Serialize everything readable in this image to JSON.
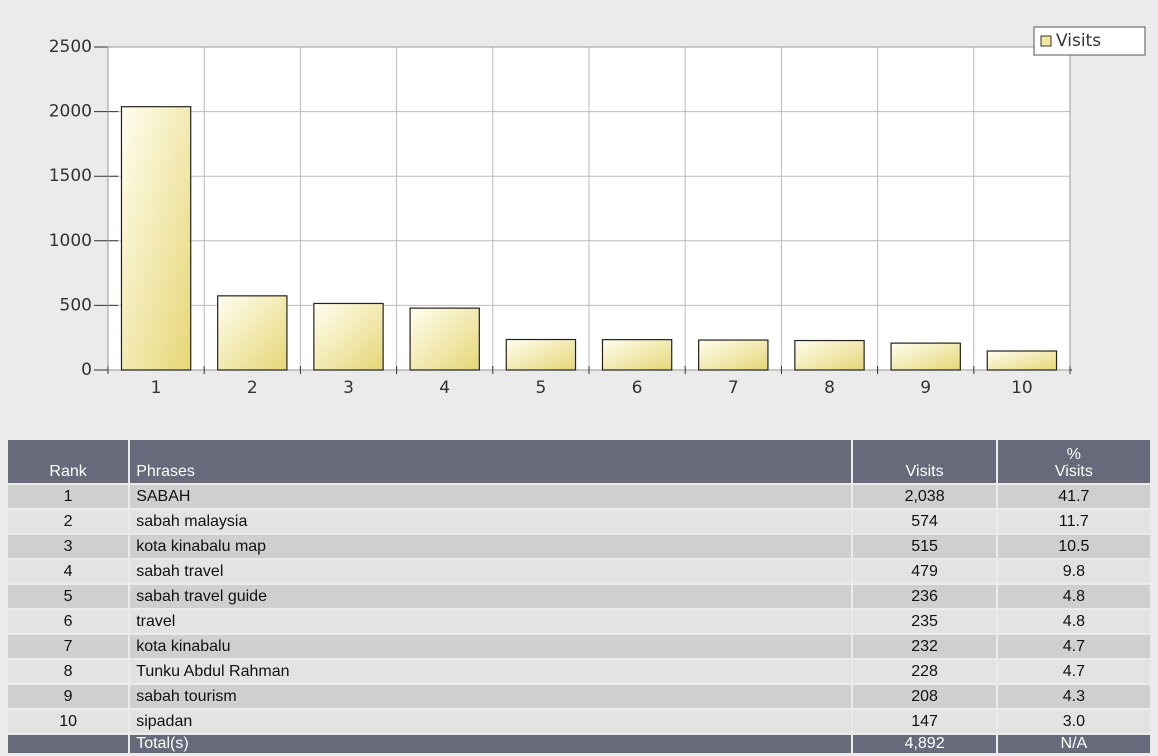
{
  "chart_data": {
    "type": "bar",
    "categories": [
      "1",
      "2",
      "3",
      "4",
      "5",
      "6",
      "7",
      "8",
      "9",
      "10"
    ],
    "series": [
      {
        "name": "Visits",
        "color": "#f3e8a0",
        "values": [
          2038,
          574,
          515,
          479,
          236,
          235,
          232,
          228,
          208,
          147
        ]
      }
    ],
    "ylim": [
      0,
      2500
    ],
    "yticks": [
      0,
      500,
      1000,
      1500,
      2000,
      2500
    ],
    "grid": true,
    "legend": "top-right"
  },
  "table": {
    "header": [
      "Rank",
      "Phrases",
      "Visits",
      "% Visits"
    ],
    "rows": [
      [
        "1",
        "SABAH",
        "2,038",
        "41.7"
      ],
      [
        "2",
        "sabah malaysia",
        "574",
        "11.7"
      ],
      [
        "3",
        "kota kinabalu map",
        "515",
        "10.5"
      ],
      [
        "4",
        "sabah travel",
        "479",
        "9.8"
      ],
      [
        "5",
        "sabah travel guide",
        "236",
        "4.8"
      ],
      [
        "6",
        "travel",
        "235",
        "4.8"
      ],
      [
        "7",
        "kota kinabalu",
        "232",
        "4.7"
      ],
      [
        "8",
        "Tunku Abdul Rahman",
        "228",
        "4.7"
      ],
      [
        "9",
        "sabah tourism",
        "208",
        "4.3"
      ],
      [
        "10",
        "sipadan",
        "147",
        "3.0"
      ]
    ],
    "total": [
      "Total(s)",
      "4,892",
      "N/A"
    ]
  }
}
